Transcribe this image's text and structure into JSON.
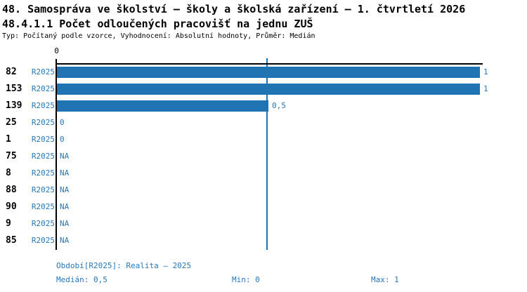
{
  "title_line1": "48. Samospráva ve školství – školy a školská zařízení – 1. čtvrtletí 2026",
  "title_line2": "48.4.1.1 Počet odloučených pracovišť na jednu ZUŠ",
  "subtitle": "Typ: Počítaný podle vzorce, Vyhodnocení: Absolutní hodnoty, Průměr: Medián",
  "colors": {
    "bar": "#2074B4",
    "accent_text": "#2478BE",
    "axis": "#000000",
    "background": "#FFFFFF"
  },
  "chart_data": {
    "type": "bar",
    "orientation": "horizontal",
    "title": "48.4.1.1 Počet odloučených pracovišť na jednu ZUŠ",
    "xlabel": "",
    "ylabel": "",
    "xlim": [
      0,
      1
    ],
    "x_axis_tick_label": "0",
    "median_line_value": 0.5,
    "series_name": "R2025",
    "grid": false,
    "legend_position": "none",
    "rows": [
      {
        "category": "82",
        "series": "R2025",
        "value": 1,
        "value_label": "1"
      },
      {
        "category": "153",
        "series": "R2025",
        "value": 1,
        "value_label": "1"
      },
      {
        "category": "139",
        "series": "R2025",
        "value": 0.5,
        "value_label": "0,5"
      },
      {
        "category": "25",
        "series": "R2025",
        "value": 0,
        "value_label": "0"
      },
      {
        "category": "1",
        "series": "R2025",
        "value": 0,
        "value_label": "0"
      },
      {
        "category": "75",
        "series": "R2025",
        "value": null,
        "value_label": "NA"
      },
      {
        "category": "8",
        "series": "R2025",
        "value": null,
        "value_label": "NA"
      },
      {
        "category": "88",
        "series": "R2025",
        "value": null,
        "value_label": "NA"
      },
      {
        "category": "90",
        "series": "R2025",
        "value": null,
        "value_label": "NA"
      },
      {
        "category": "9",
        "series": "R2025",
        "value": null,
        "value_label": "NA"
      },
      {
        "category": "85",
        "series": "R2025",
        "value": null,
        "value_label": "NA"
      }
    ]
  },
  "footer": {
    "period": "Období[R2025]: Realita – 2025",
    "median": "Medián: 0,5",
    "min": "Min: 0",
    "max": "Max: 1"
  }
}
